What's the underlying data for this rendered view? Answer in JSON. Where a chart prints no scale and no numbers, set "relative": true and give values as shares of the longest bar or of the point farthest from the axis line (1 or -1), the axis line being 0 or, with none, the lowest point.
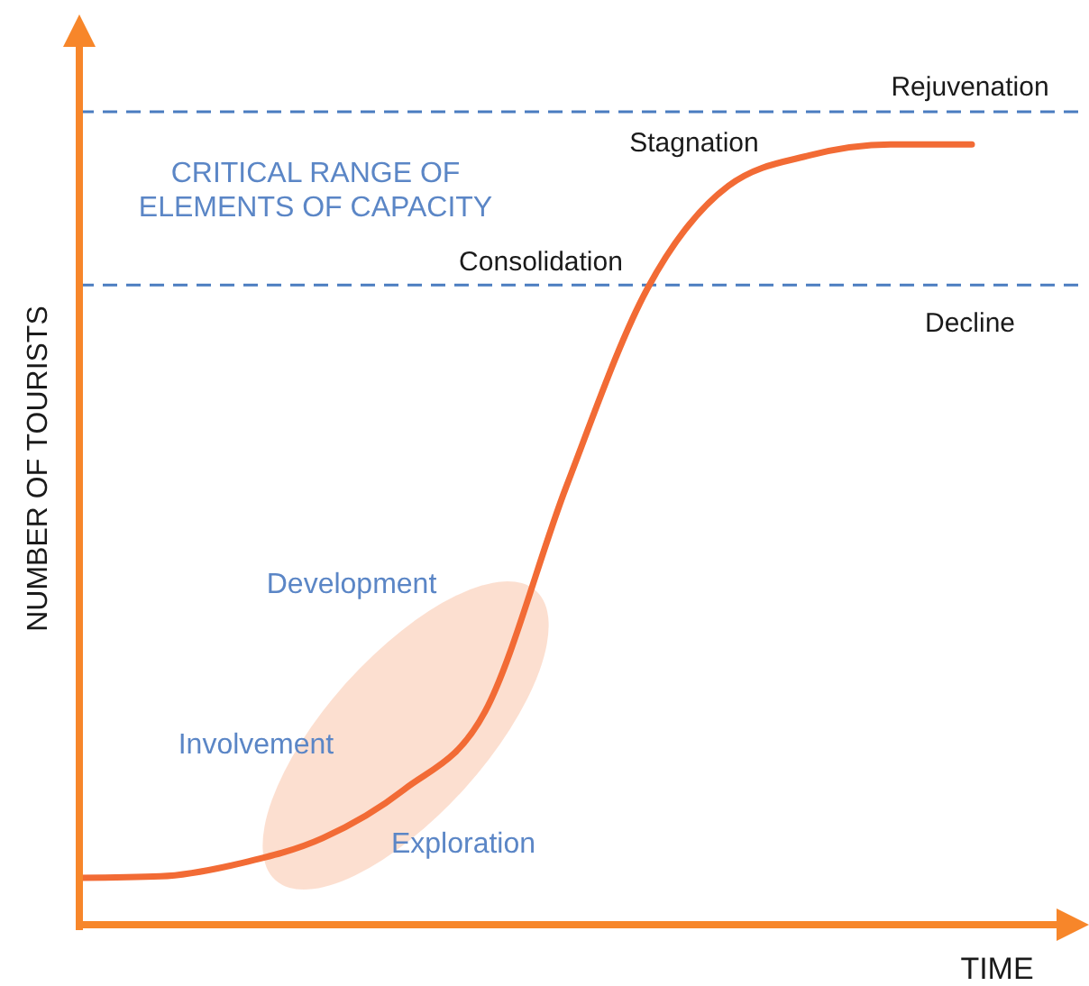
{
  "chart_data": {
    "type": "line",
    "relative": true,
    "xlabel": "TIME",
    "ylabel": "NUMBER OF TOURISTS",
    "categories": [
      null,
      null,
      null,
      null,
      null,
      null,
      null,
      null,
      null,
      null,
      null,
      null
    ],
    "series": [
      {
        "color": "#f26b35",
        "values": [
          0.06,
          0.062,
          0.079,
          0.111,
          0.173,
          0.273,
          0.561,
          0.815,
          0.947,
          0.986,
          1,
          1
        ]
      }
    ],
    "ref_lines": [
      {
        "axis": "y",
        "value": 1.042,
        "label": "Rejuvenation",
        "color": "#4a7cc0",
        "line_style": "dashed"
      },
      {
        "axis": "y",
        "value": 0.82,
        "label": "Decline",
        "color": "#4a7cc0",
        "line_style": "dashed"
      }
    ],
    "annotations": [
      "Stagnation",
      "CRITICAL RANGE OF ELEMENTS OF CAPACITY",
      "Consolidation",
      "Development",
      "Involvement",
      "Exploration"
    ],
    "marker": "none",
    "line_style": "solid"
  }
}
